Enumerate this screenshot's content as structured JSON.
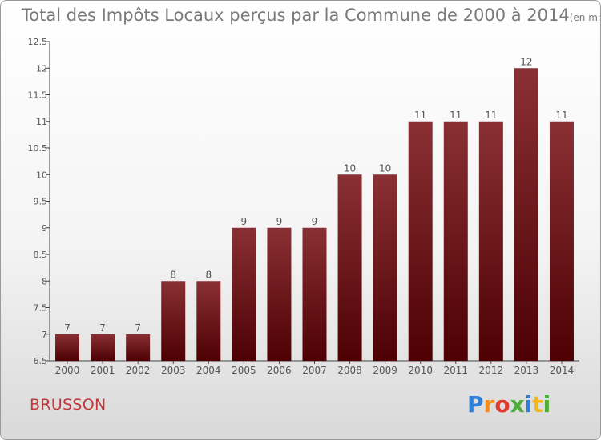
{
  "title": "Total des Impôts Locaux perçus par la Commune de 2000 à 2014",
  "title_unit": "(en milliers d'€)",
  "commune": "BRUSSON",
  "logo_text": "Proxiti",
  "colors": {
    "bar_top": "#8a3035",
    "bar_bottom": "#4d0002",
    "commune": "#c0363a",
    "axis_text": "#555555",
    "title": "#7a7a7a"
  },
  "chart_data": {
    "type": "bar",
    "title": "Total des Impôts Locaux perçus par la Commune de 2000 à 2014",
    "xlabel": "",
    "ylabel": "",
    "categories": [
      "2000",
      "2001",
      "2002",
      "2003",
      "2004",
      "2005",
      "2006",
      "2007",
      "2008",
      "2009",
      "2010",
      "2011",
      "2012",
      "2013",
      "2014"
    ],
    "values": [
      7,
      7,
      7,
      8,
      8,
      9,
      9,
      9,
      10,
      10,
      11,
      11,
      11,
      12,
      11
    ],
    "data_labels": [
      "7",
      "7",
      "7",
      "8",
      "8",
      "9",
      "9",
      "9",
      "10",
      "10",
      "11",
      "11",
      "11",
      "12",
      "11"
    ],
    "ylim": [
      6.5,
      12.5
    ],
    "yticks": [
      "6.5",
      "7",
      "7.5",
      "8",
      "8.5",
      "9",
      "9.5",
      "10",
      "10.5",
      "11",
      "11.5",
      "12",
      "12.5"
    ],
    "ytick_values": [
      6.5,
      7,
      7.5,
      8,
      8.5,
      9,
      9.5,
      10,
      10.5,
      11,
      11.5,
      12,
      12.5
    ],
    "grid": false,
    "legend": "none"
  }
}
